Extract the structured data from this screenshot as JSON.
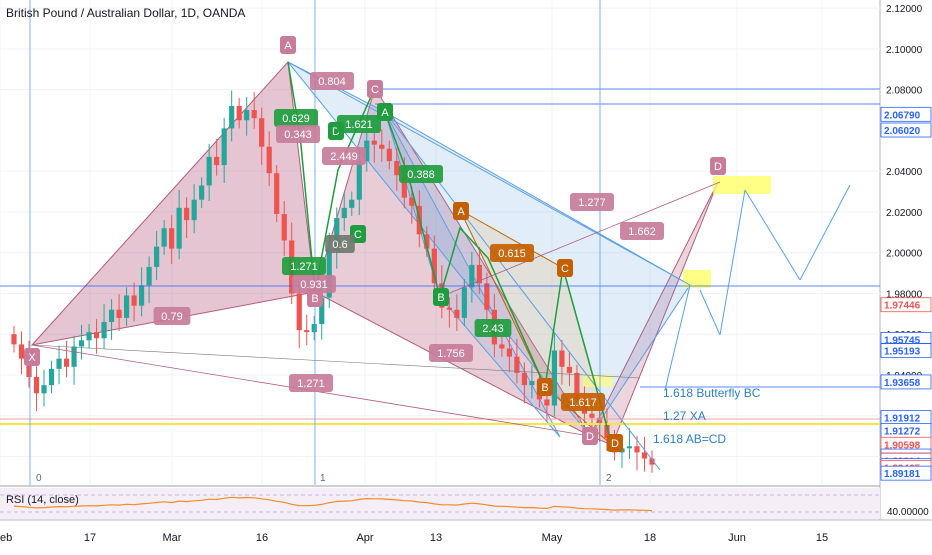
{
  "header": {
    "symbol_title": "British Pound / Australian Dollar, 1D, OANDA"
  },
  "rsi": {
    "label": "RSI (14, close)",
    "value_label": "40.00000"
  },
  "annotations": {
    "butterfly_bc": "1.618 Butterfly BC",
    "xa": "1.27 XA",
    "ab_cd": "1.618 AB=CD"
  },
  "colors": {
    "bull": "#26a69a",
    "bear": "#ef5350",
    "harmonic_fill": "#b35a7c",
    "harmonic_blue": "#5aa0e6",
    "label_pink": "#c77c9a",
    "label_green": "#1f9d3e",
    "label_orange": "#c45f00",
    "price_badge_blue": "#2962ff",
    "price_badge_red": "#ef5350"
  },
  "chart_data": {
    "type": "candlestick",
    "title": "British Pound / Australian Dollar, 1D, OANDA",
    "ylim": [
      1.886,
      2.124
    ],
    "y_ticks": [
      "2.12000",
      "2.10000",
      "2.08000",
      "2.04000",
      "2.02000",
      "2.00000",
      "1.98000",
      "1.96000",
      "1.94000",
      "1.92000",
      "1.90000"
    ],
    "price_labels": [
      {
        "value": "2.06790",
        "color": "blue"
      },
      {
        "value": "2.06020",
        "color": "blue"
      },
      {
        "value": "1.97446",
        "color": "red"
      },
      {
        "value": "1.95745",
        "color": "blue"
      },
      {
        "value": "1.95205",
        "color": "blue"
      },
      {
        "value": "1.95193",
        "color": "blue"
      },
      {
        "value": "1.93658",
        "color": "blue"
      },
      {
        "value": "1.91912",
        "color": "blue"
      },
      {
        "value": "1.91272",
        "color": "blue"
      },
      {
        "value": "1.90598",
        "color": "red"
      },
      {
        "value": "1.90020",
        "color": "blue"
      },
      {
        "value": "1.89825",
        "color": "blue"
      },
      {
        "value": "1.89814",
        "color": "red"
      },
      {
        "value": "1.89550",
        "color": "blue"
      },
      {
        "value": "1.89465",
        "color": "red"
      },
      {
        "value": "1.89181",
        "color": "blue"
      }
    ],
    "x_ticks": [
      "eb",
      "17",
      "Mar",
      "16",
      "Apr",
      "13",
      "May",
      "18",
      "Jun",
      "15"
    ],
    "candle_closes": [
      1.955,
      1.948,
      1.939,
      1.931,
      1.935,
      1.943,
      1.948,
      1.944,
      1.954,
      1.957,
      1.961,
      1.958,
      1.966,
      1.972,
      1.968,
      1.979,
      1.974,
      1.984,
      1.993,
      2.003,
      2.012,
      2.002,
      2.022,
      2.016,
      2.026,
      2.033,
      2.047,
      2.043,
      2.061,
      2.072,
      2.065,
      2.07,
      2.066,
      2.052,
      2.039,
      2.019,
      2.006,
      1.98,
      1.962,
      1.961,
      1.965,
      1.978,
      2.001,
      2.017,
      2.022,
      2.026,
      2.045,
      2.055,
      2.053,
      2.051,
      2.045,
      2.038,
      2.027,
      2.023,
      2.009,
      2.002,
      1.985,
      1.973,
      1.972,
      1.968,
      1.983,
      1.994,
      1.985,
      1.972,
      1.955,
      1.953,
      1.949,
      1.941,
      1.935,
      1.937,
      1.928,
      1.925,
      1.952,
      1.944,
      1.941,
      1.928,
      1.921,
      1.919,
      1.916,
      1.909,
      1.902,
      1.904,
      1.905,
      1.902,
      1.899,
      1.896
    ],
    "harmonic_labels": [
      {
        "text": "X",
        "style": "pink"
      },
      {
        "text": "A",
        "style": "pink"
      },
      {
        "text": "B",
        "style": "pink"
      },
      {
        "text": "C",
        "style": "pink"
      },
      {
        "text": "D",
        "style": "pink"
      },
      {
        "text": "A",
        "style": "green"
      },
      {
        "text": "B",
        "style": "green"
      },
      {
        "text": "C",
        "style": "green"
      },
      {
        "text": "D",
        "style": "green"
      },
      {
        "text": "A",
        "style": "orange"
      },
      {
        "text": "B",
        "style": "orange"
      },
      {
        "text": "C",
        "style": "orange"
      },
      {
        "text": "D",
        "style": "orange"
      },
      {
        "text": "D",
        "style": "pink"
      }
    ],
    "ratio_labels": [
      {
        "text": "0.79",
        "style": "pink"
      },
      {
        "text": "0.804",
        "style": "pink"
      },
      {
        "text": "0.629",
        "style": "green"
      },
      {
        "text": "0.343",
        "style": "pink"
      },
      {
        "text": "1.621",
        "style": "green"
      },
      {
        "text": "2.449",
        "style": "pink"
      },
      {
        "text": "0.388",
        "style": "green"
      },
      {
        "text": "1.271",
        "style": "green"
      },
      {
        "text": "0.931",
        "style": "pink"
      },
      {
        "text": "0.6",
        "style": "grey"
      },
      {
        "text": "1.277",
        "style": "pink"
      },
      {
        "text": "1.662",
        "style": "pink"
      },
      {
        "text": "0.615",
        "style": "orange"
      },
      {
        "text": "2.43",
        "style": "green"
      },
      {
        "text": "1.756",
        "style": "pink"
      },
      {
        "text": "1.617",
        "style": "orange"
      },
      {
        "text": "1.271",
        "style": "pink"
      }
    ],
    "cycle_labels": [
      "0",
      "1",
      "2"
    ],
    "grid": true
  }
}
